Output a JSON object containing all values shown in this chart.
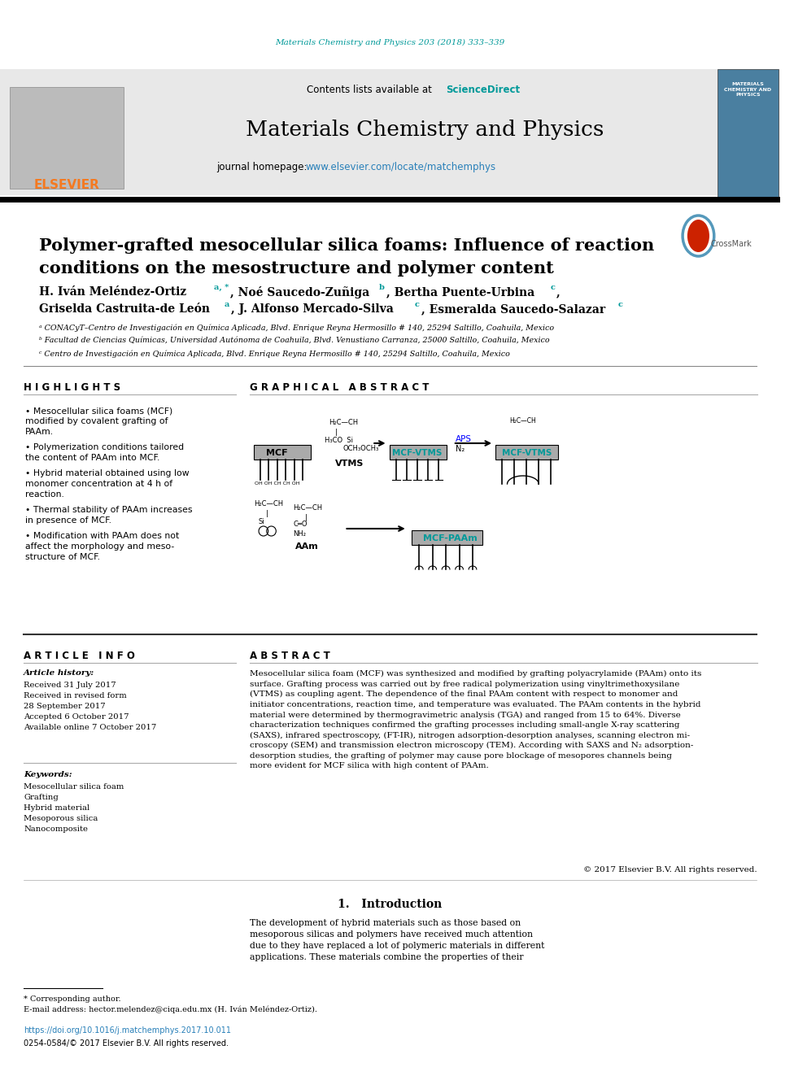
{
  "journal_ref": "Materials Chemistry and Physics 203 (2018) 333–339",
  "journal_name": "Materials Chemistry and Physics",
  "journal_homepage_prefix": "journal homepage: ",
  "journal_homepage_url": "www.elsevier.com/locate/matchemphys",
  "contents_prefix": "Contents lists available at ",
  "contents_sd": "ScienceDirect",
  "title_line1": "Polymer-grafted mesocellular silica foams: Influence of reaction",
  "title_line2": "conditions on the mesostructure and polymer content",
  "authors_line1": "H. Iván Meléndez-Ortiz",
  "authors_line1_sup": "a, *",
  "authors_line1_rest": ", Noé Saucedo-Zuñiga",
  "authors_line1_b": "b",
  "authors_line1_rest2": ", Bertha Puente-Urbina",
  "authors_line1_c": "c",
  "authors_line1_comma": ",",
  "authors_line2a": "Griselda Castruita-de León",
  "authors_line2a_sup": "a",
  "authors_line2b": ", J. Alfonso Mercado-Silva",
  "authors_line2b_sup": "c",
  "authors_line2c": ", Esmeralda Saucedo-Salazar",
  "authors_line2c_sup": "c",
  "affil_a": "ᵃ CONACyT–Centro de Investigación en Química Aplicada, Blvd. Enrique Reyna Hermosillo # 140, 25294 Saltillo, Coahuila, Mexico",
  "affil_b": "ᵇ Facultad de Ciencias Químicas, Universidad Autónoma de Coahuila, Blvd. Venustiano Carranza, 25000 Saltillo, Coahuila, Mexico",
  "affil_c": "ᶜ Centro de Investigación en Química Aplicada, Blvd. Enrique Reyna Hermosillo # 140, 25294 Saltillo, Coahuila, Mexico",
  "highlights_title": "H I G H L I G H T S",
  "highlights": [
    "Mesocellular silica foams (MCF)\nmodified by covalent grafting of\nPAAm.",
    "Polymerization conditions tailored\nthe content of PAAm into MCF.",
    "Hybrid material obtained using low\nmonomer concentration at 4 h of\nreaction.",
    "Thermal stability of PAAm increases\nin presence of MCF.",
    "Modification with PAAm does not\naffect the morphology and meso-\nstructure of MCF."
  ],
  "graphical_abstract_title": "G R A P H I C A L   A B S T R A C T",
  "article_info_title": "A R T I C L E   I N F O",
  "article_history_label": "Article history:",
  "received": "Received 31 July 2017",
  "received_revised1": "Received in revised form",
  "received_revised2": "28 September 2017",
  "accepted": "Accepted 6 October 2017",
  "available": "Available online 7 October 2017",
  "keywords_label": "Keywords:",
  "keywords": [
    "Mesocellular silica foam",
    "Grafting",
    "Hybrid material",
    "Mesoporous silica",
    "Nanocomposite"
  ],
  "abstract_title": "A B S T R A C T",
  "abstract_text": "Mesocellular silica foam (MCF) was synthesized and modified by grafting polyacrylamide (PAAm) onto its\nsurface. Grafting process was carried out by free radical polymerization using vinyltrimethoxysilane\n(VTMS) as coupling agent. The dependence of the final PAAm content with respect to monomer and\ninitiator concentrations, reaction time, and temperature was evaluated. The PAAm contents in the hybrid\nmaterial were determined by thermogravimetric analysis (TGA) and ranged from 15 to 64%. Diverse\ncharacterization techniques confirmed the grafting processes including small-angle X-ray scattering\n(SAXS), infrared spectroscopy, (FT-IR), nitrogen adsorption-desorption analyses, scanning electron mi-\ncroscopy (SEM) and transmission electron microscopy (TEM). According with SAXS and N₂ adsorption-\ndesorption studies, the grafting of polymer may cause pore blockage of mesopores channels being\nmore evident for MCF silica with high content of PAAm.",
  "abstract_footer": "© 2017 Elsevier B.V. All rights reserved.",
  "intro_title": "1.   Introduction",
  "intro_text": "The development of hybrid materials such as those based on\nmesoporous silicas and polymers have received much attention\ndue to they have replaced a lot of polymeric materials in different\napplications. These materials combine the properties of their",
  "corresponding_note": "* Corresponding author.",
  "email_note": "E-mail address: hector.melendez@ciqa.edu.mx (H. Iván Meléndez-Ortiz).",
  "doi": "https://doi.org/10.1016/j.matchemphys.2017.10.011",
  "issn": "0254-0584/© 2017 Elsevier B.V. All rights reserved.",
  "elsevier_orange": "#F47920",
  "sciencedirect_teal": "#009999",
  "link_color": "#2980B9",
  "bg_header": "#E8E8E8",
  "cover_blue": "#4A7FA0"
}
